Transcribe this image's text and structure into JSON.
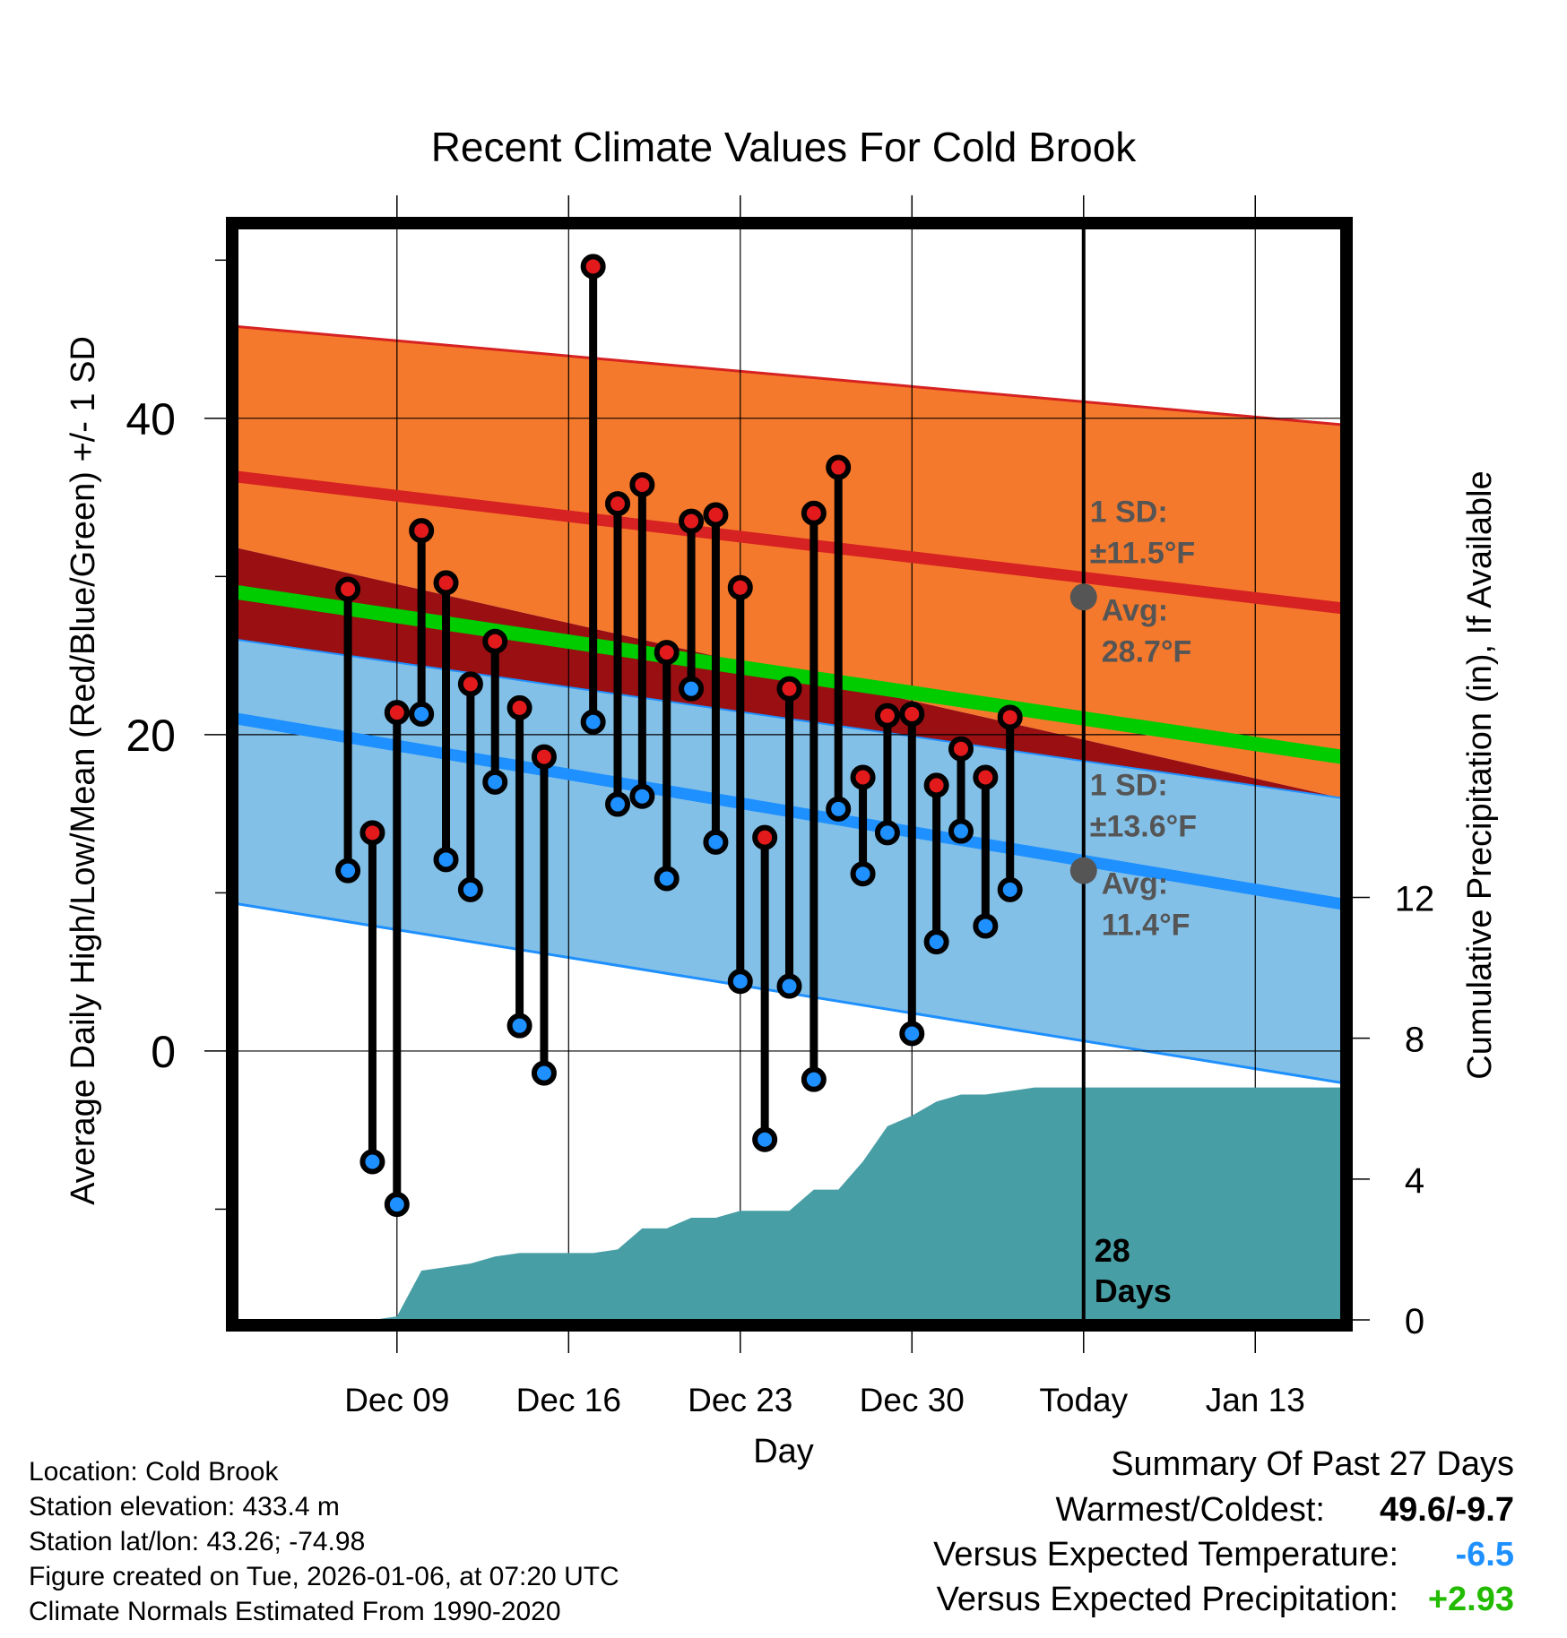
{
  "chart_data": {
    "type": "line",
    "title": "Recent Climate Values For Cold Brook",
    "xlabel": "Day",
    "ylabel": "Average Daily High/Low/Mean (Red/Blue/Green) +/- 1 SD",
    "y2label": "Cumulative Precipitation (in), If Available",
    "x_day_range": [
      -33.5,
      11.5
    ],
    "ylim": [
      -17,
      52
    ],
    "y2lim": [
      0,
      31
    ],
    "x_ticks": [
      {
        "day": -27,
        "label": "Dec 09"
      },
      {
        "day": -20,
        "label": "Dec 16"
      },
      {
        "day": -13,
        "label": "Dec 23"
      },
      {
        "day": -6,
        "label": "Dec 30"
      },
      {
        "day": 1,
        "label": "Today"
      },
      {
        "day": 8,
        "label": "Jan 13"
      }
    ],
    "y_ticks": [
      0,
      20,
      40
    ],
    "y_minor_ticks": [
      -10,
      10,
      30,
      50
    ],
    "y2_ticks": [
      0,
      4,
      8,
      12
    ],
    "today_day": 1,
    "today_label": "28\nDays",
    "normals": {
      "days": [
        -33.5,
        11.5
      ],
      "high_mean": [
        36.3,
        28.0
      ],
      "high_upper": [
        45.8,
        39.6
      ],
      "high_lower": [
        31.8,
        16.0
      ],
      "low_mean": [
        21.0,
        9.3
      ],
      "low_upper": [
        26.0,
        16.0
      ],
      "low_lower": [
        9.3,
        -2.0
      ],
      "mean": [
        29.0,
        18.6
      ]
    },
    "annotations": [
      {
        "label": "1 SD:",
        "value": "±11.5°F"
      },
      {
        "label": "Avg:",
        "value": "28.7°F"
      },
      {
        "label": "1 SD:",
        "value": "±13.6°F"
      },
      {
        "label": "Avg:",
        "value": "11.4°F"
      }
    ],
    "today_high_avg": 28.7,
    "today_low_avg": 11.4,
    "series": [
      {
        "name": "High",
        "color": "#e31a1c",
        "x": [
          -29,
          -28,
          -27,
          -26,
          -25,
          -24,
          -23,
          -22,
          -21,
          -19,
          -18,
          -17,
          -16,
          -15,
          -14,
          -13,
          -12,
          -11,
          -10,
          -9,
          -8,
          -7,
          -6,
          -5,
          -4,
          -3,
          -2,
          -1,
          0
        ],
        "values": [
          29.2,
          13.8,
          21.4,
          32.9,
          29.6,
          23.2,
          25.9,
          21.7,
          18.6,
          49.6,
          34.6,
          35.8,
          25.2,
          33.5,
          33.9,
          29.3,
          13.5,
          22.9,
          34.0,
          36.9,
          17.3,
          21.2,
          21.3,
          16.8,
          19.1,
          17.3,
          21.1,
          null,
          null
        ]
      },
      {
        "name": "Low",
        "color": "#1e90ff",
        "x": [
          -29,
          -28,
          -27,
          -26,
          -25,
          -24,
          -23,
          -22,
          -21,
          -19,
          -18,
          -17,
          -16,
          -15,
          -14,
          -13,
          -12,
          -11,
          -10,
          -9,
          -8,
          -7,
          -6,
          -5,
          -4,
          -3,
          -2,
          -1,
          0
        ],
        "values": [
          11.4,
          -7.0,
          -9.7,
          21.3,
          12.1,
          10.2,
          17.0,
          1.6,
          -1.4,
          20.8,
          15.6,
          16.1,
          10.9,
          22.9,
          13.2,
          4.4,
          -5.6,
          4.1,
          -1.8,
          15.3,
          11.2,
          13.8,
          1.1,
          6.9,
          13.9,
          7.9,
          10.2,
          null,
          null
        ]
      },
      {
        "name": "Cumulative Precipitation",
        "axis": "y2",
        "color": "#479ea5",
        "x": [
          -29,
          -28,
          -27,
          -26,
          -25,
          -24,
          -23,
          -22,
          -21,
          -20,
          -19,
          -18,
          -17,
          -16,
          -15,
          -14,
          -13,
          -12,
          -11,
          -10,
          -9,
          -8,
          -7,
          -6,
          -5,
          -4,
          -3,
          -2,
          -1,
          0,
          1,
          11.5
        ],
        "values": [
          0,
          0,
          0.1,
          1.4,
          1.5,
          1.6,
          1.8,
          1.9,
          1.9,
          1.9,
          1.9,
          2.0,
          2.6,
          2.6,
          2.9,
          2.9,
          3.1,
          3.1,
          3.1,
          3.7,
          3.7,
          4.5,
          5.5,
          5.8,
          6.2,
          6.4,
          6.4,
          6.5,
          6.6,
          6.6,
          6.6,
          6.6
        ]
      }
    ]
  },
  "info": {
    "location": "Location: Cold Brook",
    "elevation": "Station elevation: 433.4 m",
    "latlon": "Station lat/lon: 43.26; -74.98",
    "created": "Figure created on Tue, 2026-01-06, at 07:20 UTC",
    "normals": "Climate Normals Estimated From 1990-2020"
  },
  "summary": {
    "title": "Summary Of Past 27 Days",
    "warm_cold_label": "Warmest/Coldest:",
    "warm_cold_value": "49.6/-9.7",
    "temp_label": "Versus Expected Temperature:",
    "temp_value": "-6.5",
    "temp_color": "#1e90ff",
    "precip_label": "Versus Expected Precipitation:",
    "precip_value": "+2.93",
    "precip_color": "#22bb00"
  },
  "colors": {
    "high_band": "#f5792c",
    "overlap_band": "#990f12",
    "low_band": "#83c0e7",
    "high_line": "#d62222",
    "low_line": "#1e90ff",
    "mean_line": "#00cc00",
    "precip_fill": "#479ea5",
    "annotation": "#555555"
  }
}
